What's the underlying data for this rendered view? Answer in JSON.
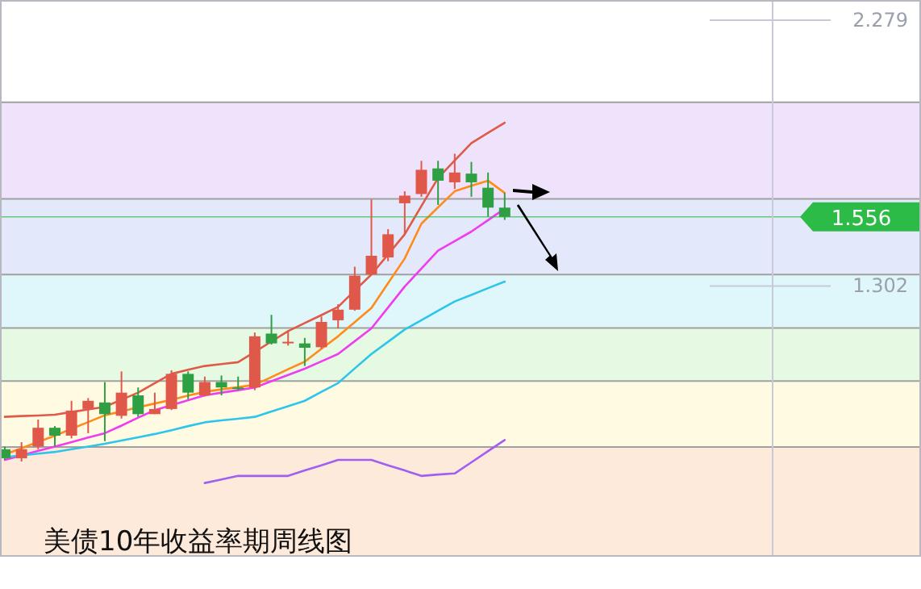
{
  "chart_data": {
    "type": "candlestick",
    "title": "美债10年收益率期周线图",
    "categories": [
      null,
      null,
      null,
      null,
      null,
      null,
      null,
      null,
      null,
      null,
      null,
      null,
      null,
      null,
      null,
      null,
      null,
      null,
      null,
      null,
      null,
      null,
      null,
      null,
      null,
      null,
      null,
      null,
      null,
      null,
      null
    ],
    "ohlc": [
      [
        0.702,
        0.712,
        0.663,
        0.669
      ],
      [
        0.669,
        0.728,
        0.657,
        0.702
      ],
      [
        0.712,
        0.811,
        0.702,
        0.781
      ],
      [
        0.781,
        0.787,
        0.712,
        0.752
      ],
      [
        0.752,
        0.88,
        0.742,
        0.844
      ],
      [
        0.85,
        0.89,
        0.761,
        0.88
      ],
      [
        0.874,
        0.949,
        0.732,
        0.831
      ],
      [
        0.825,
        0.988,
        0.815,
        0.91
      ],
      [
        0.9,
        0.929,
        0.821,
        0.831
      ],
      [
        0.831,
        0.91,
        0.831,
        0.85
      ],
      [
        0.85,
        0.992,
        0.846,
        0.979
      ],
      [
        0.979,
        0.988,
        0.886,
        0.91
      ],
      [
        0.9,
        0.969,
        0.896,
        0.949
      ],
      [
        0.949,
        0.973,
        0.9,
        0.929
      ],
      [
        0.929,
        0.969,
        0.919,
        0.925
      ],
      [
        0.929,
        1.131,
        0.919,
        1.117
      ],
      [
        1.127,
        1.196,
        1.087,
        1.091
      ],
      [
        1.091,
        1.136,
        1.083,
        1.097
      ],
      [
        1.091,
        1.111,
        1.008,
        1.075
      ],
      [
        1.077,
        1.19,
        1.071,
        1.17
      ],
      [
        1.176,
        1.235,
        1.146,
        1.215
      ],
      [
        1.215,
        1.373,
        1.211,
        1.34
      ],
      [
        1.344,
        1.62,
        1.344,
        1.413
      ],
      [
        1.407,
        1.511,
        1.393,
        1.492
      ],
      [
        1.606,
        1.65,
        1.492,
        1.634
      ],
      [
        1.64,
        1.762,
        1.63,
        1.729
      ],
      [
        1.734,
        1.762,
        1.6,
        1.689
      ],
      [
        1.683,
        1.788,
        1.659,
        1.719
      ],
      [
        1.715,
        1.758,
        1.63,
        1.683
      ],
      [
        1.663,
        1.719,
        1.557,
        1.59
      ],
      [
        1.59,
        1.644,
        1.545,
        1.556
      ]
    ],
    "colors": [
      "#2ea043",
      "#e0584a",
      "#e0584a",
      "#2ea043",
      "#e0584a",
      "#e0584a",
      "#2ea043",
      "#e0584a",
      "#2ea043",
      "#e0584a",
      "#e0584a",
      "#2ea043",
      "#e0584a",
      "#2ea043",
      "#2ea043",
      "#e0584a",
      "#2ea043",
      "#e0584a",
      "#2ea043",
      "#e0584a",
      "#e0584a",
      "#e0584a",
      "#e0584a",
      "#e0584a",
      "#e0584a",
      "#e0584a",
      "#2ea043",
      "#e0584a",
      "#2ea043",
      "#2ea043",
      "#2ea043"
    ],
    "series": [
      {
        "type": "line",
        "color": "#e05a48",
        "values": [
          0.821,
          0.824,
          0.826,
          0.829,
          0.839,
          0.848,
          0.858,
          0.884,
          0.91,
          0.945,
          0.979,
          0.994,
          1.008,
          1.015,
          1.022,
          1.06,
          1.098,
          1.136,
          1.166,
          1.195,
          1.225,
          1.285,
          1.344,
          1.418,
          1.492,
          1.596,
          1.699,
          1.763,
          1.827,
          1.865,
          1.902
        ]
      },
      {
        "type": "line",
        "color": "#ff8c1a",
        "values": [
          0.683,
          0.706,
          0.729,
          0.752,
          0.777,
          0.802,
          0.827,
          0.841,
          0.856,
          0.87,
          0.884,
          0.899,
          0.913,
          0.922,
          0.93,
          0.939,
          0.967,
          0.996,
          1.024,
          1.071,
          1.117,
          1.169,
          1.221,
          1.312,
          1.403,
          1.531,
          1.591,
          1.65,
          1.67,
          1.689,
          1.644
        ]
      },
      {
        "type": "line",
        "color": "#f03cf0",
        "values": [
          0.663,
          0.679,
          0.696,
          0.712,
          0.728,
          0.745,
          0.761,
          0.789,
          0.818,
          0.846,
          0.864,
          0.882,
          0.9,
          0.91,
          0.919,
          0.929,
          0.952,
          0.975,
          0.998,
          1.025,
          1.052,
          1.099,
          1.146,
          1.223,
          1.3,
          1.366,
          1.432,
          1.467,
          1.502,
          1.544,
          1.586
        ]
      },
      {
        "type": "line",
        "color": "#2ec5ea",
        "values": [
          0.673,
          0.679,
          0.686,
          0.692,
          0.702,
          0.712,
          0.722,
          0.734,
          0.746,
          0.758,
          0.772,
          0.787,
          0.801,
          0.808,
          0.814,
          0.821,
          0.841,
          0.86,
          0.88,
          0.913,
          0.945,
          0.999,
          1.052,
          1.097,
          1.142,
          1.176,
          1.211,
          1.245,
          1.269,
          1.294,
          1.318
        ]
      },
      {
        "type": "line",
        "color": "#a05ff0",
        "values": [
          null,
          null,
          null,
          null,
          null,
          null,
          null,
          null,
          null,
          null,
          null,
          null,
          0.578,
          0.591,
          0.604,
          0.604,
          0.604,
          0.604,
          0.624,
          0.643,
          0.663,
          0.663,
          0.663,
          0.643,
          0.624,
          0.604,
          0.609,
          0.613,
          0.654,
          0.695,
          0.736
        ]
      }
    ],
    "ylim": [
      0.31,
      2.35
    ],
    "yticks": [
      2.279,
      1.302
    ],
    "tick_labels": "y",
    "bands": [
      {
        "axis": "y",
        "from": 1.622,
        "to": 1.977,
        "color": "#efe3fb"
      },
      {
        "axis": "y",
        "from": 1.344,
        "to": 1.622,
        "color": "#e3e9fb"
      },
      {
        "axis": "y",
        "from": 1.148,
        "to": 1.344,
        "color": "#dff6fb"
      },
      {
        "axis": "y",
        "from": 0.953,
        "to": 1.148,
        "color": "#e6f9e3"
      },
      {
        "axis": "y",
        "from": 0.71,
        "to": 0.953,
        "color": "#fffbe3"
      },
      {
        "axis": "y",
        "from": 0.31,
        "to": 0.71,
        "color": "#fdeadb"
      }
    ],
    "ref_lines": [
      {
        "axis": "y",
        "value": 1.556,
        "label": "1.556",
        "color": "#2dbb47"
      }
    ]
  }
}
